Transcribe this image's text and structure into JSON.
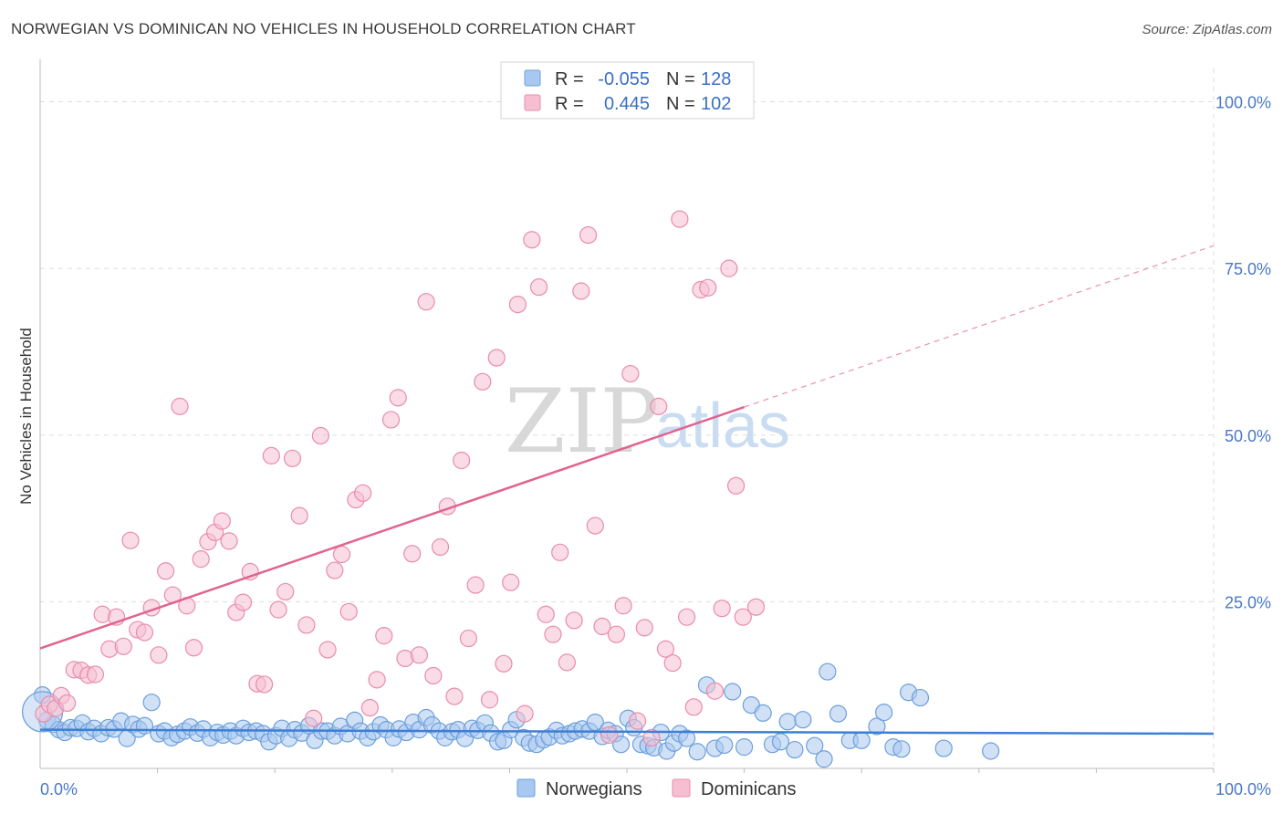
{
  "title": "NORWEGIAN VS DOMINICAN NO VEHICLES IN HOUSEHOLD CORRELATION CHART",
  "source": "Source: ZipAtlas.com",
  "watermark": {
    "zip": "ZIP",
    "atlas": "atlas"
  },
  "colors": {
    "norwegian_fill": "#a9c8ef",
    "norwegian_stroke": "#6c9fdc",
    "norwegian_line": "#3d7fd6",
    "dominican_fill": "#f6bfd1",
    "dominican_stroke": "#e98cab",
    "dominican_line": "#e0648f",
    "tick_text": "#4a78c8",
    "grid": "#dddddd"
  },
  "stats": [
    {
      "r_label": "R =",
      "r_value": "-0.055",
      "n_label": "N =",
      "n_value": "128"
    },
    {
      "r_label": "R =",
      "r_value": "0.445",
      "n_label": "N =",
      "n_value": "102"
    }
  ],
  "chart_data": {
    "type": "scatter",
    "xlabel": "",
    "ylabel": "No Vehicles in Household",
    "xlim": [
      0,
      100
    ],
    "ylim": [
      0,
      105
    ],
    "x_tick_labels": [
      {
        "value": 0,
        "label": "0.0%"
      },
      {
        "value": 100,
        "label": "100.0%"
      }
    ],
    "y_tick_labels": [
      {
        "value": 25,
        "label": "25.0%"
      },
      {
        "value": 50,
        "label": "50.0%"
      },
      {
        "value": 75,
        "label": "75.0%"
      },
      {
        "value": 100,
        "label": "100.0%"
      }
    ],
    "grid": true,
    "legend_position": "bottom-center",
    "series": [
      {
        "name": "Norwegians",
        "trend": {
          "x0": 0,
          "y0": 5.8,
          "x1": 100,
          "y1": 5.2
        },
        "points": [
          [
            0.2,
            11.0
          ],
          [
            0.6,
            7.2
          ],
          [
            1.1,
            6.6
          ],
          [
            1.6,
            5.8
          ],
          [
            2.1,
            5.4
          ],
          [
            2.6,
            6.1
          ],
          [
            3.1,
            6.0
          ],
          [
            3.6,
            6.8
          ],
          [
            4.1,
            5.5
          ],
          [
            4.6,
            6.0
          ],
          [
            5.2,
            5.2
          ],
          [
            5.8,
            6.1
          ],
          [
            6.3,
            5.9
          ],
          [
            6.9,
            7.1
          ],
          [
            7.4,
            4.5
          ],
          [
            7.9,
            6.6
          ],
          [
            8.4,
            5.9
          ],
          [
            8.9,
            6.4
          ],
          [
            9.5,
            9.9
          ],
          [
            10.1,
            5.2
          ],
          [
            10.6,
            5.6
          ],
          [
            11.2,
            4.6
          ],
          [
            11.7,
            5.1
          ],
          [
            12.3,
            5.6
          ],
          [
            12.8,
            6.2
          ],
          [
            13.4,
            5.3
          ],
          [
            13.9,
            5.9
          ],
          [
            14.5,
            4.6
          ],
          [
            15.1,
            5.4
          ],
          [
            15.6,
            5.0
          ],
          [
            16.2,
            5.6
          ],
          [
            16.7,
            4.9
          ],
          [
            17.3,
            6.0
          ],
          [
            17.8,
            5.4
          ],
          [
            18.4,
            5.6
          ],
          [
            19.0,
            5.2
          ],
          [
            19.5,
            4.0
          ],
          [
            20.1,
            4.9
          ],
          [
            20.6,
            6.0
          ],
          [
            21.2,
            4.5
          ],
          [
            21.7,
            5.8
          ],
          [
            22.3,
            5.3
          ],
          [
            22.9,
            6.4
          ],
          [
            23.4,
            4.2
          ],
          [
            24.0,
            5.6
          ],
          [
            24.5,
            5.6
          ],
          [
            25.1,
            4.9
          ],
          [
            25.6,
            6.3
          ],
          [
            26.2,
            5.2
          ],
          [
            26.8,
            7.2
          ],
          [
            27.3,
            5.6
          ],
          [
            27.9,
            4.6
          ],
          [
            28.4,
            5.5
          ],
          [
            29.0,
            6.5
          ],
          [
            29.5,
            5.8
          ],
          [
            30.1,
            4.6
          ],
          [
            30.6,
            5.9
          ],
          [
            31.2,
            5.4
          ],
          [
            31.8,
            6.9
          ],
          [
            32.3,
            5.8
          ],
          [
            32.9,
            7.6
          ],
          [
            33.4,
            6.5
          ],
          [
            34.0,
            5.6
          ],
          [
            34.5,
            4.6
          ],
          [
            35.1,
            5.5
          ],
          [
            35.6,
            5.8
          ],
          [
            36.2,
            4.5
          ],
          [
            36.8,
            6.0
          ],
          [
            37.3,
            5.7
          ],
          [
            37.9,
            6.8
          ],
          [
            38.4,
            5.3
          ],
          [
            39.0,
            4.0
          ],
          [
            39.5,
            4.2
          ],
          [
            40.1,
            5.8
          ],
          [
            40.6,
            7.3
          ],
          [
            41.2,
            4.6
          ],
          [
            41.7,
            3.8
          ],
          [
            42.3,
            3.6
          ],
          [
            42.9,
            4.3
          ],
          [
            43.4,
            4.7
          ],
          [
            44.0,
            5.7
          ],
          [
            44.5,
            4.9
          ],
          [
            45.1,
            5.2
          ],
          [
            45.6,
            5.6
          ],
          [
            46.2,
            5.9
          ],
          [
            46.8,
            5.6
          ],
          [
            47.3,
            6.9
          ],
          [
            47.9,
            4.8
          ],
          [
            48.4,
            5.7
          ],
          [
            49.0,
            5.2
          ],
          [
            49.5,
            3.6
          ],
          [
            50.1,
            7.5
          ],
          [
            50.6,
            6.1
          ],
          [
            51.2,
            3.6
          ],
          [
            51.8,
            3.4
          ],
          [
            52.3,
            3.1
          ],
          [
            52.9,
            5.4
          ],
          [
            53.4,
            2.6
          ],
          [
            54.0,
            3.8
          ],
          [
            54.5,
            5.2
          ],
          [
            55.1,
            4.5
          ],
          [
            56.0,
            2.5
          ],
          [
            56.8,
            12.5
          ],
          [
            57.5,
            3.0
          ],
          [
            58.3,
            3.5
          ],
          [
            59.0,
            11.5
          ],
          [
            60.0,
            3.2
          ],
          [
            60.6,
            9.5
          ],
          [
            61.6,
            8.3
          ],
          [
            62.4,
            3.6
          ],
          [
            63.1,
            4.0
          ],
          [
            63.7,
            7.0
          ],
          [
            64.3,
            2.8
          ],
          [
            65.0,
            7.3
          ],
          [
            66.0,
            3.4
          ],
          [
            66.8,
            1.4
          ],
          [
            67.1,
            14.5
          ],
          [
            68.0,
            8.2
          ],
          [
            69.0,
            4.2
          ],
          [
            70.0,
            4.2
          ],
          [
            71.3,
            6.3
          ],
          [
            71.9,
            8.4
          ],
          [
            72.7,
            3.2
          ],
          [
            73.4,
            2.9
          ],
          [
            74.0,
            11.4
          ],
          [
            75.0,
            10.6
          ],
          [
            77.0,
            3.0
          ],
          [
            81.0,
            2.6
          ]
        ]
      },
      {
        "name": "Dominicans",
        "trend": {
          "x0": 0,
          "y0": 18.0,
          "x1": 60,
          "y1": 54.2
        },
        "trend_extension": {
          "x0": 60,
          "y0": 54.2,
          "x1": 100,
          "y1": 78.4
        },
        "points": [
          [
            0.3,
            8.2
          ],
          [
            0.8,
            9.6
          ],
          [
            1.3,
            9.0
          ],
          [
            1.8,
            10.9
          ],
          [
            2.3,
            9.8
          ],
          [
            2.9,
            14.8
          ],
          [
            3.5,
            14.7
          ],
          [
            4.1,
            14.0
          ],
          [
            4.7,
            14.1
          ],
          [
            5.3,
            23.1
          ],
          [
            5.9,
            17.9
          ],
          [
            6.5,
            22.7
          ],
          [
            7.1,
            18.3
          ],
          [
            7.7,
            34.2
          ],
          [
            8.3,
            20.8
          ],
          [
            8.9,
            20.4
          ],
          [
            9.5,
            24.1
          ],
          [
            10.1,
            17.0
          ],
          [
            10.7,
            29.6
          ],
          [
            11.3,
            26.0
          ],
          [
            11.9,
            54.3
          ],
          [
            12.5,
            24.4
          ],
          [
            13.1,
            18.1
          ],
          [
            13.7,
            31.4
          ],
          [
            14.3,
            34.0
          ],
          [
            14.9,
            35.4
          ],
          [
            15.5,
            37.1
          ],
          [
            16.1,
            34.1
          ],
          [
            16.7,
            23.4
          ],
          [
            17.3,
            24.9
          ],
          [
            17.9,
            29.5
          ],
          [
            18.5,
            12.7
          ],
          [
            19.1,
            12.6
          ],
          [
            19.7,
            46.9
          ],
          [
            20.3,
            23.8
          ],
          [
            20.9,
            26.5
          ],
          [
            21.5,
            46.5
          ],
          [
            22.1,
            37.9
          ],
          [
            22.7,
            21.5
          ],
          [
            23.3,
            7.5
          ],
          [
            23.9,
            49.9
          ],
          [
            24.5,
            17.8
          ],
          [
            25.1,
            29.7
          ],
          [
            25.7,
            32.1
          ],
          [
            26.3,
            23.5
          ],
          [
            26.9,
            40.3
          ],
          [
            27.5,
            41.3
          ],
          [
            28.1,
            9.1
          ],
          [
            28.7,
            13.3
          ],
          [
            29.3,
            19.9
          ],
          [
            29.9,
            52.3
          ],
          [
            30.5,
            55.6
          ],
          [
            31.1,
            16.5
          ],
          [
            31.7,
            32.2
          ],
          [
            32.3,
            17.0
          ],
          [
            32.9,
            70.0
          ],
          [
            33.5,
            13.9
          ],
          [
            34.1,
            33.2
          ],
          [
            34.7,
            39.3
          ],
          [
            35.3,
            10.8
          ],
          [
            35.9,
            46.2
          ],
          [
            36.5,
            19.5
          ],
          [
            37.1,
            27.5
          ],
          [
            37.7,
            58.0
          ],
          [
            38.3,
            10.3
          ],
          [
            38.9,
            61.6
          ],
          [
            39.5,
            15.7
          ],
          [
            40.1,
            27.9
          ],
          [
            40.7,
            69.6
          ],
          [
            41.3,
            8.2
          ],
          [
            41.9,
            79.3
          ],
          [
            42.5,
            72.2
          ],
          [
            43.1,
            23.1
          ],
          [
            43.7,
            20.1
          ],
          [
            44.3,
            32.4
          ],
          [
            44.9,
            15.9
          ],
          [
            45.5,
            22.2
          ],
          [
            46.1,
            71.6
          ],
          [
            46.7,
            80.0
          ],
          [
            47.3,
            36.4
          ],
          [
            47.9,
            21.3
          ],
          [
            48.5,
            5.0
          ],
          [
            49.1,
            20.1
          ],
          [
            49.7,
            24.4
          ],
          [
            50.3,
            59.2
          ],
          [
            50.9,
            7.1
          ],
          [
            51.5,
            21.1
          ],
          [
            52.1,
            4.6
          ],
          [
            52.7,
            54.3
          ],
          [
            53.3,
            17.9
          ],
          [
            53.9,
            15.8
          ],
          [
            54.5,
            82.4
          ],
          [
            55.1,
            22.7
          ],
          [
            55.7,
            9.2
          ],
          [
            56.3,
            71.8
          ],
          [
            56.9,
            72.1
          ],
          [
            57.5,
            11.6
          ],
          [
            58.1,
            24.0
          ],
          [
            58.7,
            75.0
          ],
          [
            59.3,
            42.4
          ],
          [
            59.9,
            22.7
          ],
          [
            61.0,
            24.2
          ]
        ]
      }
    ]
  }
}
